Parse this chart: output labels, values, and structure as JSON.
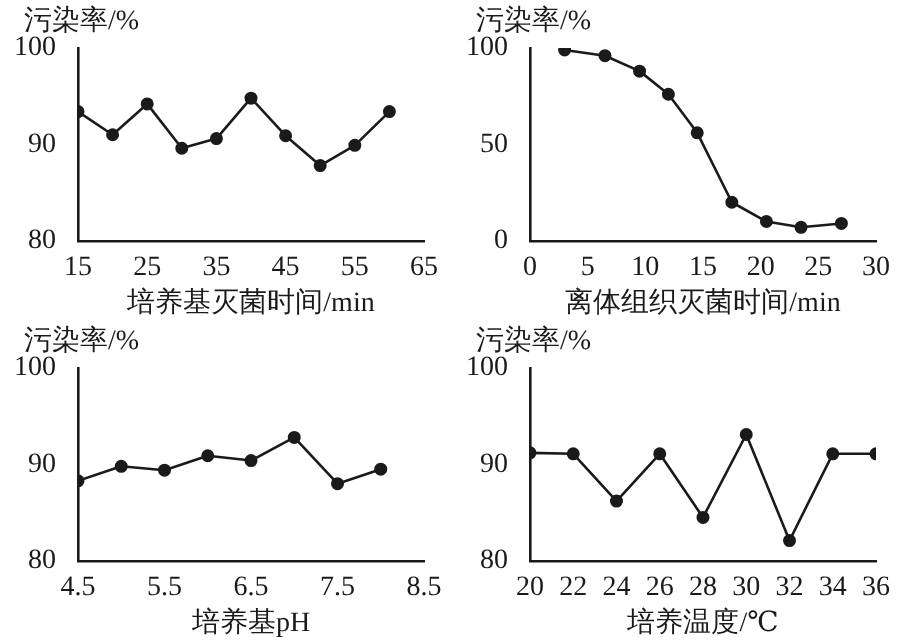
{
  "chart_data": [
    {
      "type": "line",
      "xlabel": "培养基灭菌时间/min",
      "ylabel": "污染率/%",
      "x": [
        15,
        20,
        25,
        30,
        35,
        40,
        45,
        50,
        55,
        60
      ],
      "series": [
        {
          "color": "#1a1a1a",
          "values": [
            93.4,
            91,
            94.2,
            89.6,
            90.6,
            94.8,
            90.9,
            87.8,
            89.9,
            93.4
          ]
        }
      ],
      "xlim": [
        15,
        65
      ],
      "xticks": [
        15,
        25,
        35,
        45,
        55,
        65
      ],
      "ylim": [
        80,
        100
      ],
      "yticks": [
        80,
        90,
        100
      ],
      "marker": "circle",
      "grid": false
    },
    {
      "type": "line",
      "xlabel": "离体组织灭菌时间/min",
      "ylabel": "污染率/%",
      "x": [
        3,
        6.5,
        9.5,
        12,
        14.5,
        17.5,
        20.5,
        23.5,
        27
      ],
      "series": [
        {
          "color": "#1a1a1a",
          "values": [
            99,
            96,
            88,
            76,
            56,
            20,
            10,
            7,
            9
          ]
        }
      ],
      "xlim": [
        0,
        30
      ],
      "xticks": [
        0,
        5,
        10,
        15,
        20,
        25,
        30
      ],
      "ylim": [
        0,
        100
      ],
      "yticks": [
        0,
        50,
        100
      ],
      "marker": "circle",
      "grid": false
    },
    {
      "type": "line",
      "xlabel": "培养基pH",
      "ylabel": "污染率/%",
      "x": [
        4.5,
        5,
        5.5,
        6,
        6.5,
        7,
        7.5,
        8
      ],
      "series": [
        {
          "color": "#1a1a1a",
          "values": [
            88.3,
            89.8,
            89.4,
            90.9,
            90.4,
            92.8,
            88,
            89.5
          ]
        }
      ],
      "xlim": [
        4.5,
        8.5
      ],
      "xticks": [
        4.5,
        5.5,
        6.5,
        7.5,
        8.5
      ],
      "ylim": [
        80,
        100
      ],
      "yticks": [
        80,
        90,
        100
      ],
      "marker": "circle",
      "grid": false
    },
    {
      "type": "line",
      "xlabel": "培养温度/℃",
      "ylabel": "污染率/%",
      "x": [
        20,
        22,
        24,
        26,
        28,
        30,
        32,
        34,
        36
      ],
      "series": [
        {
          "color": "#1a1a1a",
          "values": [
            91.2,
            91.1,
            86.2,
            91.1,
            84.5,
            93.1,
            82.1,
            91.1,
            91.1
          ]
        }
      ],
      "xlim": [
        20,
        36
      ],
      "xticks": [
        20,
        22,
        24,
        26,
        28,
        30,
        32,
        34,
        36
      ],
      "ylim": [
        80,
        100
      ],
      "yticks": [
        80,
        90,
        100
      ],
      "marker": "circle",
      "grid": false
    }
  ]
}
